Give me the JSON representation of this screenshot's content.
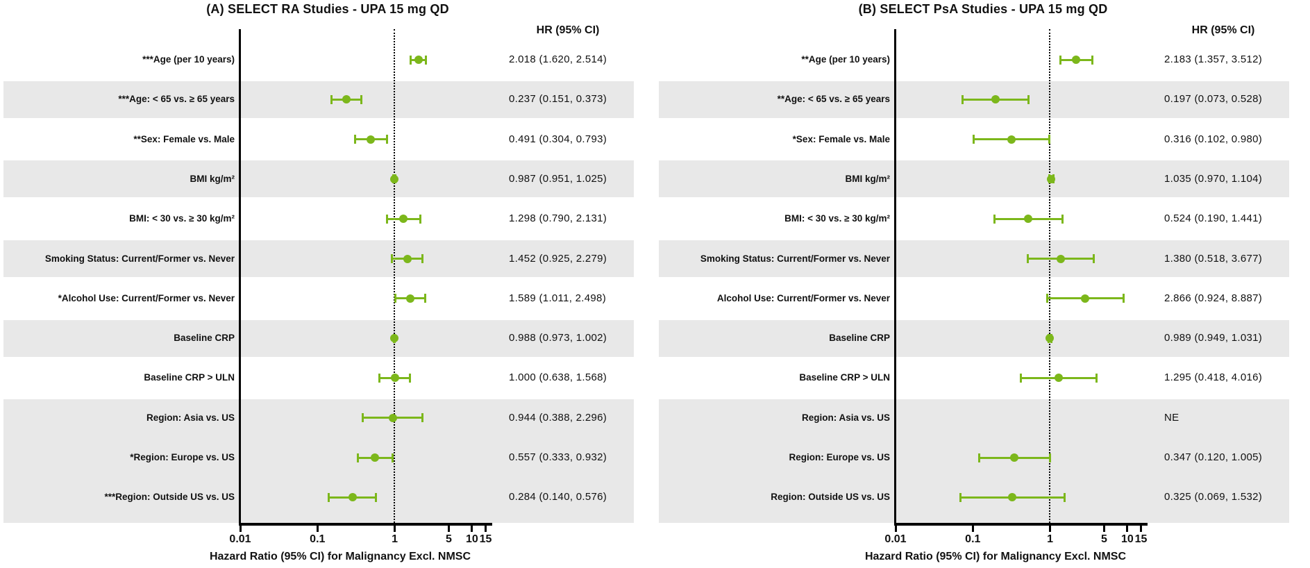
{
  "colors": {
    "marker_green": "#7cb71b",
    "band_gray": "#e8e8e8",
    "axis_black": "#000000"
  },
  "column_header": "HR (95% CI)",
  "axis": {
    "label": "Hazard Ratio (95% CI) for Malignancy Excl. NMSC",
    "scale": "log",
    "min": 0.01,
    "max": 17,
    "reference_line": 1,
    "ticks": [
      0.01,
      0.1,
      1,
      5,
      10,
      15
    ],
    "tick_labels": [
      "0.01",
      "0.1",
      "1",
      "5",
      "10",
      "15"
    ]
  },
  "chart_data": [
    {
      "type": "forest",
      "title": "(A) SELECT RA Studies - UPA 15 mg QD",
      "hr_header": "HR (95% CI)",
      "axis_label": "Hazard Ratio (95% CI) for Malignancy Excl. NMSC",
      "rows": [
        {
          "label": "***Age (per 10 years)",
          "hr": 2.018,
          "lo": 1.62,
          "hi": 2.514,
          "text": "2.018 (1.620, 2.514)",
          "shaded": false
        },
        {
          "label": "***Age: < 65 vs. ≥ 65 years",
          "hr": 0.237,
          "lo": 0.151,
          "hi": 0.373,
          "text": "0.237 (0.151, 0.373)",
          "shaded": true
        },
        {
          "label": "**Sex: Female vs. Male",
          "hr": 0.491,
          "lo": 0.304,
          "hi": 0.793,
          "text": "0.491 (0.304, 0.793)",
          "shaded": false
        },
        {
          "label": "BMI kg/m²",
          "hr": 0.987,
          "lo": 0.951,
          "hi": 1.025,
          "text": "0.987 (0.951, 1.025)",
          "shaded": true
        },
        {
          "label": "BMI: < 30 vs. ≥ 30 kg/m²",
          "hr": 1.298,
          "lo": 0.79,
          "hi": 2.131,
          "text": "1.298 (0.790, 2.131)",
          "shaded": false
        },
        {
          "label": "Smoking Status: Current/Former vs. Never",
          "hr": 1.452,
          "lo": 0.925,
          "hi": 2.279,
          "text": "1.452 (0.925, 2.279)",
          "shaded": true
        },
        {
          "label": "*Alcohol Use: Current/Former vs. Never",
          "hr": 1.589,
          "lo": 1.011,
          "hi": 2.498,
          "text": "1.589 (1.011, 2.498)",
          "shaded": false
        },
        {
          "label": "Baseline CRP",
          "hr": 0.988,
          "lo": 0.973,
          "hi": 1.002,
          "text": "0.988 (0.973, 1.002)",
          "shaded": true
        },
        {
          "label": "Baseline CRP > ULN",
          "hr": 1.0,
          "lo": 0.638,
          "hi": 1.568,
          "text": "1.000 (0.638, 1.568)",
          "shaded": false
        },
        {
          "label": "Region: Asia vs. US",
          "hr": 0.944,
          "lo": 0.388,
          "hi": 2.296,
          "text": "0.944 (0.388, 2.296)",
          "shaded": true
        },
        {
          "label": "*Region: Europe vs. US",
          "hr": 0.557,
          "lo": 0.333,
          "hi": 0.932,
          "text": "0.557 (0.333, 0.932)",
          "shaded": true
        },
        {
          "label": "***Region: Outside US vs. US",
          "hr": 0.284,
          "lo": 0.14,
          "hi": 0.576,
          "text": "0.284 (0.140, 0.576)",
          "shaded": true
        }
      ]
    },
    {
      "type": "forest",
      "title": "(B) SELECT PsA Studies - UPA 15 mg QD",
      "hr_header": "HR (95% CI)",
      "axis_label": "Hazard Ratio (95% CI) for Malignancy Excl. NMSC",
      "rows": [
        {
          "label": "**Age (per 10 years)",
          "hr": 2.183,
          "lo": 1.357,
          "hi": 3.512,
          "text": "2.183 (1.357, 3.512)",
          "shaded": false
        },
        {
          "label": "**Age: < 65 vs. ≥ 65 years",
          "hr": 0.197,
          "lo": 0.073,
          "hi": 0.528,
          "text": "0.197 (0.073, 0.528)",
          "shaded": true
        },
        {
          "label": "*Sex: Female vs. Male",
          "hr": 0.316,
          "lo": 0.102,
          "hi": 0.98,
          "text": "0.316 (0.102, 0.980)",
          "shaded": false
        },
        {
          "label": "BMI kg/m²",
          "hr": 1.035,
          "lo": 0.97,
          "hi": 1.104,
          "text": "1.035 (0.970, 1.104)",
          "shaded": true
        },
        {
          "label": "BMI: < 30 vs. ≥ 30 kg/m²",
          "hr": 0.524,
          "lo": 0.19,
          "hi": 1.441,
          "text": "0.524 (0.190, 1.441)",
          "shaded": false
        },
        {
          "label": "Smoking Status: Current/Former vs. Never",
          "hr": 1.38,
          "lo": 0.518,
          "hi": 3.677,
          "text": "1.380 (0.518, 3.677)",
          "shaded": true
        },
        {
          "label": "Alcohol Use: Current/Former vs. Never",
          "hr": 2.866,
          "lo": 0.924,
          "hi": 8.887,
          "text": "2.866 (0.924, 8.887)",
          "shaded": false
        },
        {
          "label": "Baseline CRP",
          "hr": 0.989,
          "lo": 0.949,
          "hi": 1.031,
          "text": "0.989 (0.949, 1.031)",
          "shaded": true
        },
        {
          "label": "Baseline CRP > ULN",
          "hr": 1.295,
          "lo": 0.418,
          "hi": 4.016,
          "text": "1.295 (0.418, 4.016)",
          "shaded": false
        },
        {
          "label": "Region: Asia vs. US",
          "hr": null,
          "lo": null,
          "hi": null,
          "text": "NE",
          "shaded": true
        },
        {
          "label": "Region: Europe vs. US",
          "hr": 0.347,
          "lo": 0.12,
          "hi": 1.005,
          "text": "0.347 (0.120, 1.005)",
          "shaded": true
        },
        {
          "label": "Region: Outside US vs. US",
          "hr": 0.325,
          "lo": 0.069,
          "hi": 1.532,
          "text": "0.325 (0.069, 1.532)",
          "shaded": true
        }
      ]
    }
  ]
}
